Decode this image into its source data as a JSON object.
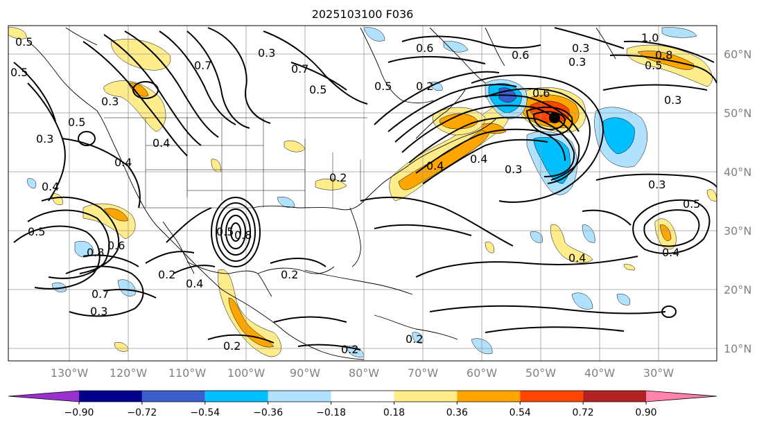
{
  "title": "2025103100 F036",
  "map": {
    "lon_labels": [
      "130°W",
      "120°W",
      "110°W",
      "100°W",
      "90°W",
      "80°W",
      "70°W",
      "60°W",
      "50°W",
      "40°W",
      "30°W"
    ],
    "lat_labels": [
      "60°N",
      "50°N",
      "40°N",
      "30°N",
      "20°N",
      "10°N"
    ],
    "contour_labels": [
      "0.5",
      "0.5",
      "0.3",
      "0.5",
      "0.3",
      "0.4",
      "0.4",
      "0.4",
      "0.5",
      "0.8",
      "0.6",
      "0.7",
      "0.3",
      "0.2",
      "0.4",
      "0.2",
      "0.7",
      "0.7",
      "0.5",
      "0.5",
      "0.2",
      "0.5",
      "0.8",
      "0.3",
      "0.6",
      "0.2",
      "0.6",
      "0.6",
      "0.4",
      "0.4",
      "0.3",
      "0.3",
      "0.3",
      "0.4",
      "0.5",
      "0.4",
      "1.0",
      "0.8",
      "0.5",
      "0.3",
      "0.3",
      "0.2",
      "0.2",
      "0.2"
    ],
    "marker": "black-dot"
  },
  "colorbar": {
    "ticks": [
      "−0.90",
      "−0.72",
      "−0.54",
      "−0.36",
      "−0.18",
      "0.18",
      "0.36",
      "0.54",
      "0.72",
      "0.90"
    ],
    "colors": [
      "#9a32cd",
      "#00008b",
      "#3a5fcd",
      "#00bfff",
      "#b0e2ff",
      "#ffffff",
      "#ffec8b",
      "#ffa500",
      "#ff4500",
      "#b22222",
      "#ff82ab"
    ]
  }
}
